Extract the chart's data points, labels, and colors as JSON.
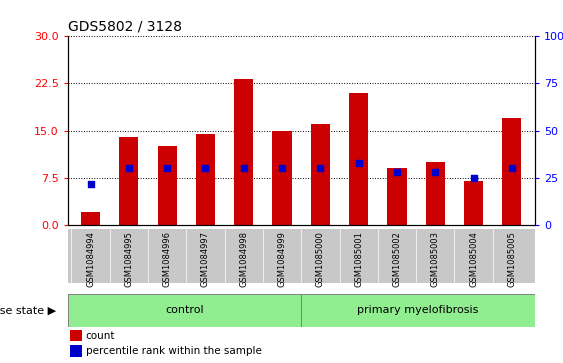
{
  "title": "GDS5802 / 3128",
  "samples": [
    "GSM1084994",
    "GSM1084995",
    "GSM1084996",
    "GSM1084997",
    "GSM1084998",
    "GSM1084999",
    "GSM1085000",
    "GSM1085001",
    "GSM1085002",
    "GSM1085003",
    "GSM1085004",
    "GSM1085005"
  ],
  "counts": [
    2.0,
    14.0,
    12.5,
    14.5,
    23.2,
    15.0,
    16.0,
    21.0,
    9.0,
    10.0,
    7.0,
    17.0
  ],
  "percentiles_pct": [
    22,
    30,
    30,
    30,
    30,
    30,
    30,
    33,
    28,
    28,
    25,
    30
  ],
  "bar_color": "#CC0000",
  "dot_color": "#0000CC",
  "ylim_left": [
    0,
    30
  ],
  "ylim_right": [
    0,
    100
  ],
  "yticks_left": [
    0,
    7.5,
    15,
    22.5,
    30
  ],
  "yticks_right": [
    0,
    25,
    50,
    75,
    100
  ],
  "n_control": 6,
  "n_disease": 6,
  "control_label": "control",
  "disease_label": "primary myelofibrosis",
  "group_bg": "#90EE90",
  "disease_state_label": "disease state",
  "tick_area_bg": "#C8C8C8",
  "legend_count_label": "count",
  "legend_percentile_label": "percentile rank within the sample"
}
